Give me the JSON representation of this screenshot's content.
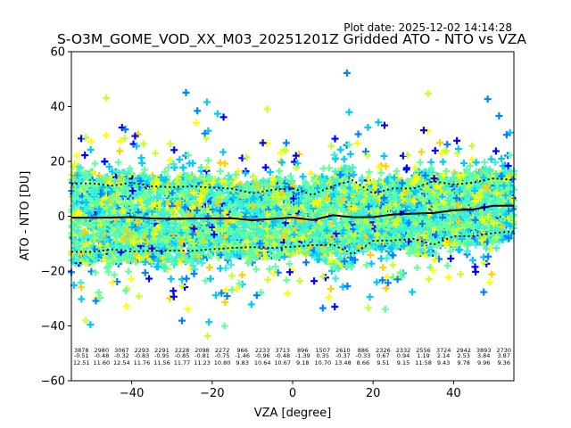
{
  "plot_date": "Plot date: 2025-12-02 14:14:28",
  "chart_data": {
    "type": "scatter",
    "title": "S-O3M_GOME_VOD_XX_M03_20251201Z Gridded ATO - NTO vs VZA",
    "xlabel": "VZA [degree]",
    "ylabel": "ATO - NTO [DU]",
    "xlim": [
      -55,
      55
    ],
    "ylim": [
      -60,
      60
    ],
    "xticks": [
      -40,
      -20,
      0,
      20,
      40
    ],
    "xtick_labels": [
      "−40",
      "−20",
      "0",
      "20",
      "40"
    ],
    "yticks": [
      -60,
      -40,
      -20,
      0,
      20,
      40,
      60
    ],
    "ytick_labels": [
      "−60",
      "−40",
      "−20",
      "0",
      "20",
      "40",
      "60"
    ],
    "marker": "+",
    "marker_colors": [
      "#0000ff",
      "#0080ff",
      "#00c8ff",
      "#3cf0d8",
      "#66ffa0",
      "#c8ff30",
      "#ffff00",
      "#ffd000"
    ],
    "bins_vza": [
      -52.5,
      -47.5,
      -42.5,
      -37.5,
      -32.5,
      -27.5,
      -22.5,
      -17.5,
      -12.5,
      -7.5,
      -2.5,
      2.5,
      7.5,
      12.5,
      17.5,
      22.5,
      27.5,
      32.5,
      37.5,
      42.5,
      47.5,
      52.5
    ],
    "stats": {
      "count": [
        "3878",
        "2980",
        "3067",
        "2293",
        "2291",
        "2228",
        "2098",
        "2272",
        "966",
        "2233",
        "3713",
        "896",
        "1507",
        "2610",
        "886",
        "2326",
        "2332",
        "2556",
        "3724",
        "2942",
        "3893",
        "2730"
      ],
      "mean": [
        "-0.51",
        "-0.48",
        "-0.32",
        "-0.83",
        "-0.95",
        "-0.85",
        "-0.81",
        "-0.75",
        "-1.46",
        "-0.96",
        "-0.48",
        "-1.39",
        "0.35",
        "-0.37",
        "-0.33",
        "0.67",
        "0.94",
        "1.19",
        "2.14",
        "2.53",
        "3.84",
        "3.87"
      ],
      "std": [
        "12.51",
        "11.60",
        "12.54",
        "11.76",
        "11.56",
        "11.77",
        "11.23",
        "10.80",
        "9.83",
        "10.64",
        "10.67",
        "9.18",
        "10.70",
        "13.48",
        "8.66",
        "9.51",
        "9.15",
        "11.58",
        "9.43",
        "9.78",
        "9.96",
        "9.36"
      ]
    },
    "series": [
      {
        "name": "mean",
        "style": "solid",
        "color": "#000000",
        "x": [
          -55,
          -50,
          -45,
          -40,
          -35,
          -30,
          -25,
          -20,
          -15,
          -10,
          -5,
          0,
          5,
          10,
          15,
          20,
          25,
          30,
          35,
          40,
          45,
          50,
          55
        ],
        "values": [
          -0.51,
          -0.51,
          -0.48,
          -0.32,
          -0.83,
          -0.95,
          -0.85,
          -0.81,
          -0.75,
          -1.46,
          -0.96,
          -0.48,
          -1.39,
          0.35,
          -0.37,
          -0.33,
          0.67,
          0.94,
          1.19,
          2.14,
          2.53,
          3.84,
          3.87
        ]
      },
      {
        "name": "mean + std",
        "style": "dotted",
        "color": "#000000",
        "x": [
          -55,
          -50,
          -45,
          -40,
          -35,
          -30,
          -25,
          -20,
          -15,
          -10,
          -5,
          0,
          5,
          10,
          15,
          20,
          25,
          30,
          35,
          40,
          45,
          50,
          55
        ],
        "values": [
          12.0,
          12.0,
          11.12,
          12.22,
          10.93,
          10.61,
          10.92,
          10.42,
          10.05,
          8.37,
          9.68,
          10.19,
          7.79,
          11.05,
          13.11,
          8.33,
          10.18,
          10.09,
          12.77,
          11.57,
          12.31,
          13.8,
          13.23
        ]
      },
      {
        "name": "mean - std",
        "style": "dotted",
        "color": "#000000",
        "x": [
          -55,
          -50,
          -45,
          -40,
          -35,
          -30,
          -25,
          -20,
          -15,
          -10,
          -5,
          0,
          5,
          10,
          15,
          20,
          25,
          30,
          35,
          40,
          45,
          50,
          55
        ],
        "values": [
          -13.02,
          -13.02,
          -12.08,
          -12.86,
          -12.59,
          -12.51,
          -12.62,
          -12.04,
          -11.55,
          -11.29,
          -11.6,
          -11.15,
          -10.57,
          -10.35,
          -13.85,
          -8.99,
          -8.84,
          -8.21,
          -10.39,
          -7.29,
          -7.25,
          -6.12,
          -5.49
        ]
      }
    ]
  }
}
